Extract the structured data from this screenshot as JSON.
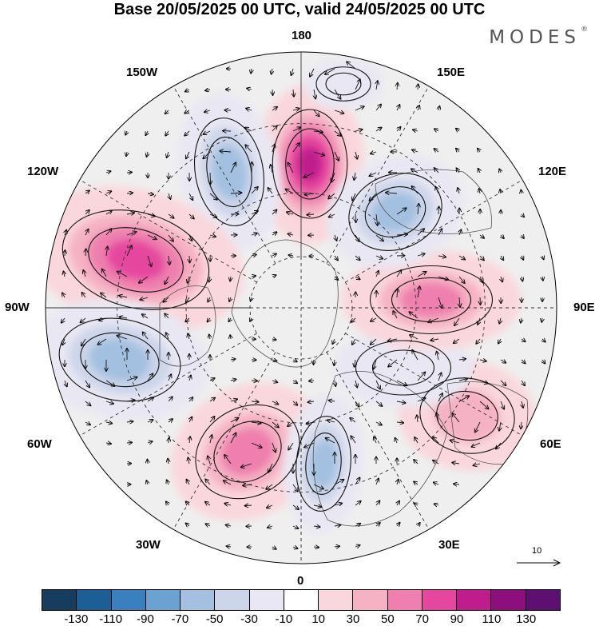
{
  "title": "Base 20/05/2025 00 UTC, valid 24/05/2025 00 UTC",
  "brand": {
    "name": "MODES",
    "mark": "®"
  },
  "longitude_labels": {
    "top": "180",
    "bottom": "0",
    "left": "90W",
    "right": "90E",
    "upper_left_1": "150W",
    "upper_left_2": "120W",
    "upper_right_1": "150E",
    "upper_right_2": "120E",
    "lower_left_1": "60W",
    "lower_left_2": "30W",
    "lower_right_1": "60E",
    "lower_right_2": "30E"
  },
  "reference_vector": {
    "label": "10"
  },
  "colorbar": {
    "ticks": [
      "-130",
      "-110",
      "-90",
      "-70",
      "-50",
      "-30",
      "-10",
      "10",
      "30",
      "50",
      "70",
      "90",
      "110",
      "130"
    ],
    "colors": [
      "#163c5e",
      "#1c5f96",
      "#3a80bf",
      "#6aa2d1",
      "#a3c0e0",
      "#ccd5ea",
      "#e9e7f3",
      "#ffffff",
      "#fad7dc",
      "#f5b2c4",
      "#ee7fae",
      "#e5479e",
      "#c01d8c",
      "#8d0f7e",
      "#5e0f72"
    ]
  },
  "anomaly_centers": [
    {
      "sign": "positive",
      "level": 110,
      "location": "near 180, mid-latitudes"
    },
    {
      "sign": "negative",
      "level": -70,
      "location": "150W"
    },
    {
      "sign": "positive",
      "level": 90,
      "location": "110W"
    },
    {
      "sign": "negative",
      "level": -70,
      "location": "75W"
    },
    {
      "sign": "positive",
      "level": 70,
      "location": "30W"
    },
    {
      "sign": "negative",
      "level": -70,
      "location": "10E"
    },
    {
      "sign": "positive",
      "level": 50,
      "location": "60E"
    },
    {
      "sign": "negative",
      "level": -30,
      "location": "75E"
    },
    {
      "sign": "positive",
      "level": 70,
      "location": "95E"
    },
    {
      "sign": "negative",
      "level": -70,
      "location": "130E"
    }
  ]
}
